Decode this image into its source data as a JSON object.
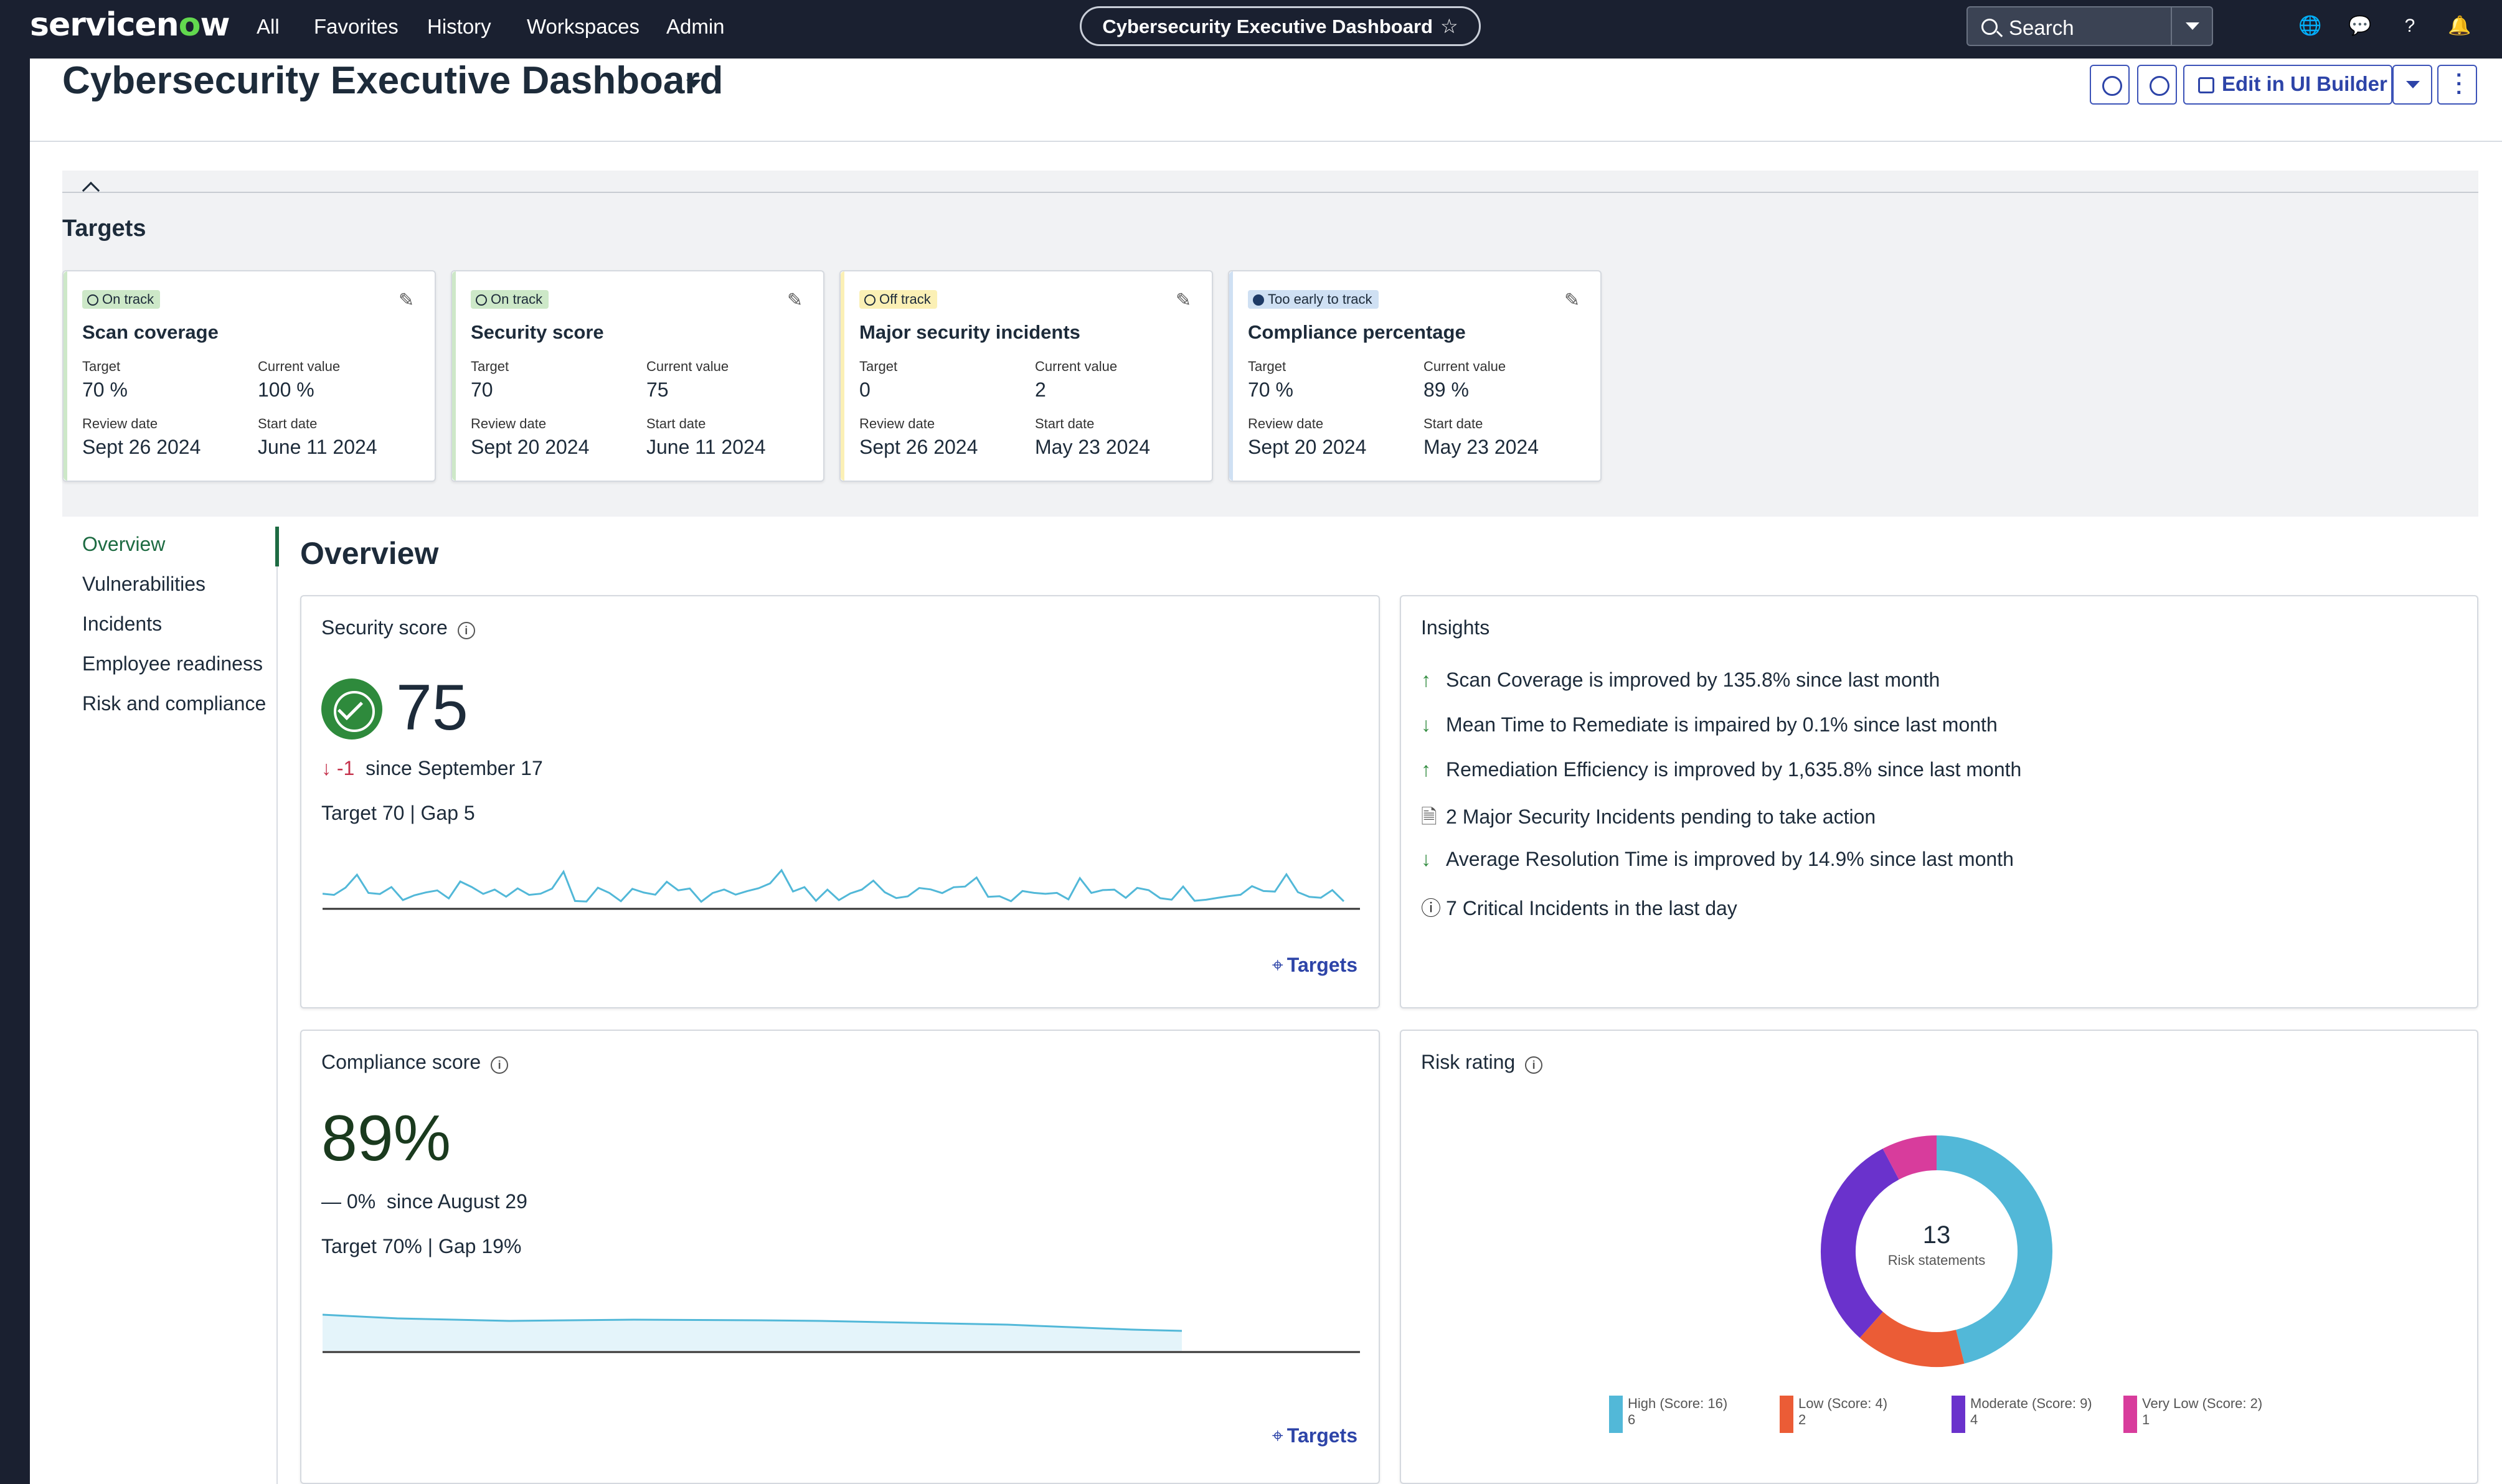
{
  "nav": {
    "logo_a": "servicen",
    "logo_o": "o",
    "logo_b": "w",
    "items": [
      "All",
      "Favorites",
      "History",
      "Workspaces",
      "Admin"
    ],
    "pill_title": "Cybersecurity Executive Dashboard",
    "star_icon": "star-icon",
    "search_placeholder": "Search"
  },
  "header": {
    "title": "Cybersecurity Executive Dashboard",
    "edit_label": "Edit in UI Builder"
  },
  "targets": {
    "title": "Targets",
    "cards": [
      {
        "badge": "On track",
        "badge_color": "#cde8c8",
        "accent": "#cde8c8",
        "name": "Scan coverage",
        "target_label": "Target",
        "target": "70 %",
        "current_label": "Current value",
        "current": "100 %",
        "review_label": "Review date",
        "review": "Sept 26 2024",
        "start_label": "Start date",
        "start": "June 11 2024"
      },
      {
        "badge": "On track",
        "badge_color": "#cde8c8",
        "accent": "#cde8c8",
        "name": "Security score",
        "target_label": "Target",
        "target": "70",
        "current_label": "Current value",
        "current": "75",
        "review_label": "Review date",
        "review": "Sept 20 2024",
        "start_label": "Start date",
        "start": "June 11 2024"
      },
      {
        "badge": "Off track",
        "badge_color": "#fbf0b5",
        "accent": "#fbf0b5",
        "name": "Major security incidents",
        "target_label": "Target",
        "target": "0",
        "current_label": "Current value",
        "current": "2",
        "review_label": "Review date",
        "review": "Sept 26 2024",
        "start_label": "Start date",
        "start": "May 23 2024"
      },
      {
        "badge": "Too early to track",
        "badge_color": "#cfe0f3",
        "accent": "#cfe0f3",
        "name": "Compliance percentage",
        "target_label": "Target",
        "target": "70 %",
        "current_label": "Current value",
        "current": "89 %",
        "review_label": "Review date",
        "review": "Sept 20 2024",
        "start_label": "Start date",
        "start": "May 23 2024"
      }
    ]
  },
  "sidenav": [
    "Overview",
    "Vulnerabilities",
    "Incidents",
    "Employee readiness",
    "Risk and compliance"
  ],
  "overview": {
    "title": "Overview",
    "security": {
      "title": "Security score",
      "value": "75",
      "delta_arrow": "↓",
      "delta": "-1",
      "since": "since September 17",
      "target_label": "Target",
      "target": "70",
      "sep": "|",
      "gap_label": "Gap",
      "gap": "5",
      "link": "Targets"
    },
    "insights": {
      "title": "Insights",
      "items": [
        {
          "icon": "↑",
          "text": "Scan Coverage is improved by 135.8% since last month"
        },
        {
          "icon": "↓",
          "text": "Mean Time to Remediate is impaired by 0.1% since last month"
        },
        {
          "icon": "↑",
          "text": "Remediation Efficiency is improved by 1,635.8% since last month"
        },
        {
          "icon": "🗎",
          "text": "2 Major Security Incidents pending to take action"
        },
        {
          "icon": "↓",
          "text": "Average Resolution Time is improved by 14.9% since last month"
        },
        {
          "icon": "ⓘ",
          "text": "7 Critical Incidents in the last day"
        }
      ]
    },
    "compliance": {
      "title": "Compliance score",
      "value": "89%",
      "delta_arrow": "—",
      "delta": "0%",
      "since": "since August 29",
      "target_label": "Target",
      "target": "70%",
      "sep": "|",
      "gap_label": "Gap",
      "gap": "19%",
      "link": "Targets"
    },
    "risk": {
      "title": "Risk rating",
      "total": "13",
      "total_label": "Risk statements"
    }
  },
  "chart_data": {
    "type": "pie",
    "title": "Risk rating",
    "categories": [
      "High (Score: 16)",
      "Low (Score: 4)",
      "Moderate (Score: 9)",
      "Very Low (Score: 2)"
    ],
    "values": [
      6,
      2,
      4,
      1
    ],
    "colors": [
      "#52b8d8",
      "#eb5c36",
      "#6a32cc",
      "#d83c9c"
    ],
    "legend": "bottom"
  }
}
